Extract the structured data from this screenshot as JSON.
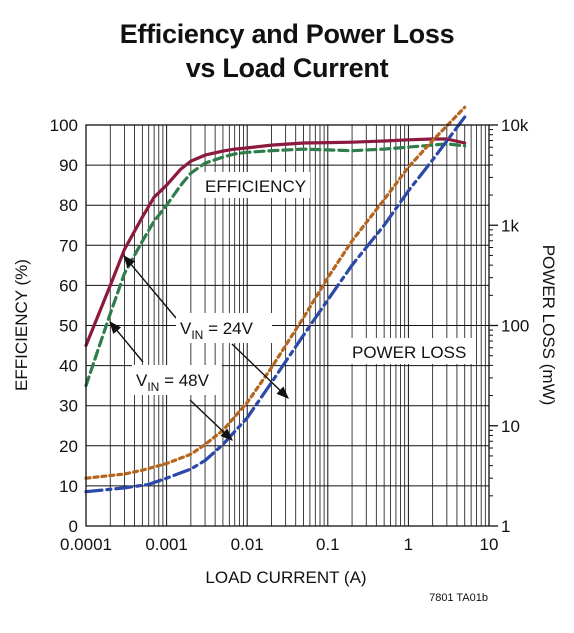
{
  "chart_data": {
    "type": "line",
    "title": "Efficiency and Power Loss",
    "subtitle": "vs Load Current",
    "xlabel": "LOAD CURRENT (A)",
    "ylabel": "EFFICIENCY (%)",
    "y2label": "POWER LOSS (mW)",
    "x_scale": "log",
    "xlim": [
      0.0001,
      10
    ],
    "ylim": [
      0,
      100
    ],
    "y2_scale": "log",
    "y2lim": [
      1,
      10000
    ],
    "grid": true,
    "x_ticks": [
      "0.0001",
      "0.001",
      "0.01",
      "0.1",
      "1",
      "10"
    ],
    "y_ticks": [
      "0",
      "10",
      "20",
      "30",
      "40",
      "50",
      "60",
      "70",
      "80",
      "90",
      "100"
    ],
    "y2_ticks": [
      "1",
      "10",
      "100",
      "1k",
      "10k"
    ],
    "annotations": {
      "efficiency": "EFFICIENCY",
      "power_loss": "POWER LOSS",
      "vin24_prefix": "V",
      "vin24_sub": "IN",
      "vin24_suffix": " = 24V",
      "vin48_prefix": "V",
      "vin48_sub": "IN",
      "vin48_suffix": " = 48V"
    },
    "figure_code": "7801 TA01b",
    "series": [
      {
        "axis": "left",
        "color": "#8b1a3c",
        "dash": "solid",
        "x": [
          0.0001,
          0.0002,
          0.0003,
          0.0005,
          0.0007,
          0.001,
          0.0015,
          0.002,
          0.003,
          0.005,
          0.007,
          0.01,
          0.02,
          0.05,
          0.1,
          0.2,
          0.5,
          1,
          2,
          3,
          5
        ],
        "y": [
          45,
          60,
          69,
          77,
          82,
          85,
          89,
          91,
          92.5,
          93.5,
          94,
          94.3,
          95,
          95.5,
          95.6,
          95.7,
          96,
          96.3,
          96.5,
          96.5,
          95.5
        ]
      },
      {
        "axis": "left",
        "color": "#2e7d4a",
        "dash": "dash",
        "x": [
          0.0001,
          0.0002,
          0.0003,
          0.0005,
          0.0007,
          0.001,
          0.0015,
          0.002,
          0.003,
          0.005,
          0.007,
          0.01,
          0.02,
          0.05,
          0.1,
          0.2,
          0.5,
          1,
          2,
          3,
          5
        ],
        "y": [
          35,
          53,
          63,
          71,
          76,
          80,
          85,
          88,
          90.5,
          92,
          92.8,
          93.2,
          93.6,
          94,
          93.8,
          93.6,
          94,
          94.5,
          95,
          95.3,
          94.8
        ]
      },
      {
        "axis": "right",
        "color": "#b5651d",
        "dash": "dot",
        "x": [
          0.0001,
          0.0003,
          0.0005,
          0.001,
          0.002,
          0.003,
          0.005,
          0.01,
          0.02,
          0.05,
          0.1,
          0.2,
          0.5,
          1,
          2,
          5
        ],
        "y": [
          3,
          3.3,
          3.6,
          4.2,
          5.2,
          6.5,
          9,
          17,
          38,
          120,
          300,
          700,
          1800,
          3800,
          7000,
          15000
        ]
      },
      {
        "axis": "right",
        "color": "#2a49a8",
        "dash": "dashdot",
        "x": [
          0.0001,
          0.0003,
          0.0006,
          0.001,
          0.002,
          0.003,
          0.005,
          0.01,
          0.02,
          0.05,
          0.1,
          0.2,
          0.5,
          1,
          2,
          5
        ],
        "y": [
          2.2,
          2.4,
          2.6,
          3,
          3.7,
          4.5,
          6.5,
          12,
          27,
          80,
          180,
          400,
          1000,
          2200,
          4500,
          12000
        ]
      }
    ]
  }
}
